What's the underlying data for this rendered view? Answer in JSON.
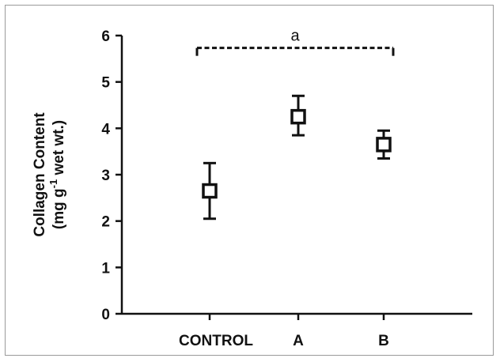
{
  "chart_data": {
    "type": "scatter",
    "categories": [
      "CONTROL",
      "A",
      "B"
    ],
    "values": [
      2.65,
      4.25,
      3.65
    ],
    "error_upper": [
      3.25,
      4.7,
      3.95
    ],
    "error_lower": [
      2.05,
      3.85,
      3.35
    ],
    "ylabel_line1": "Collagen Content",
    "ylabel_line2_pre": "(mg g",
    "ylabel_line2_sup": "-1",
    "ylabel_line2_post": " wet wt.)",
    "ylim": [
      0,
      6
    ],
    "yticks": [
      "0",
      "1",
      "2",
      "3",
      "4",
      "5",
      "6"
    ],
    "grid": false,
    "annotation": {
      "label": "a",
      "from": "CONTROL",
      "to": "B",
      "y": 5.75,
      "style": "dashed"
    },
    "colors": {
      "ink": "#111111",
      "marker_fill": "#ffffff"
    }
  }
}
